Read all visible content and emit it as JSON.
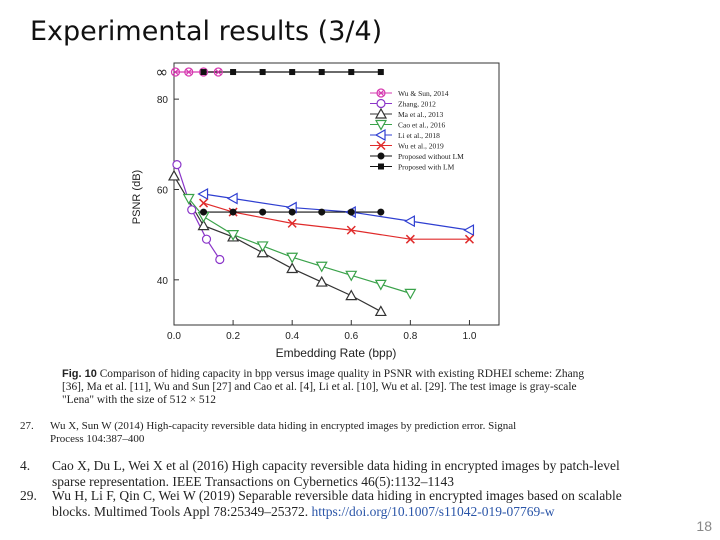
{
  "slide": {
    "title": "Experimental results (3/4)",
    "page_number": "18"
  },
  "chart_data": {
    "type": "line",
    "xlabel": "Embedding Rate (bpp)",
    "ylabel": "PSNR (dB)",
    "xlim": [
      0,
      1.1
    ],
    "ylim": [
      30,
      88
    ],
    "xticks": [
      0.0,
      0.2,
      0.4,
      0.6,
      0.8,
      1.0
    ],
    "xtick_labels": [
      "0.0",
      "0.2",
      "0.4",
      "0.6",
      "0.8",
      "1.0"
    ],
    "yticks": [
      40,
      60,
      80
    ],
    "ytick_labels": [
      "40",
      "60",
      "80"
    ],
    "infinity_label": "∞",
    "infinity_value": 86,
    "legend_position": "top-right",
    "series": [
      {
        "name": "Wu & Sun, 2014",
        "color": "#d63ab0",
        "marker": "circle-x",
        "x": [
          0.005,
          0.05,
          0.1,
          0.15
        ],
        "y": [
          86,
          86,
          86,
          86
        ]
      },
      {
        "name": "Zhang, 2012",
        "color": "#8a35c9",
        "marker": "circle-open",
        "x": [
          0.01,
          0.06,
          0.11,
          0.155
        ],
        "y": [
          65.5,
          55.5,
          49,
          44.5
        ]
      },
      {
        "name": "Ma et al., 2013",
        "color": "#333333",
        "marker": "triangle-open",
        "x": [
          0.0,
          0.1,
          0.2,
          0.3,
          0.4,
          0.5,
          0.6,
          0.7
        ],
        "y": [
          63,
          52,
          49.5,
          46,
          42.5,
          39.5,
          36.5,
          33
        ]
      },
      {
        "name": "Cao et al., 2016",
        "color": "#3aa24a",
        "marker": "triangle-down-open",
        "x": [
          0.05,
          0.1,
          0.2,
          0.3,
          0.4,
          0.5,
          0.6,
          0.7,
          0.8
        ],
        "y": [
          58,
          54,
          50,
          47.5,
          45,
          43,
          41,
          39,
          37
        ]
      },
      {
        "name": "Li et al., 2018",
        "color": "#2f3fd1",
        "marker": "triangle-left-open",
        "x": [
          0.1,
          0.2,
          0.4,
          0.6,
          0.8,
          1.0
        ],
        "y": [
          59,
          58,
          56,
          55,
          53,
          51
        ]
      },
      {
        "name": "Wu et al., 2019",
        "color": "#e02b2b",
        "marker": "x",
        "x": [
          0.1,
          0.2,
          0.4,
          0.6,
          0.8,
          1.0
        ],
        "y": [
          57,
          55,
          52.5,
          51,
          49,
          49
        ]
      },
      {
        "name": "Proposed without LM",
        "color": "#111111",
        "marker": "dot",
        "x": [
          0.1,
          0.2,
          0.3,
          0.4,
          0.5,
          0.6,
          0.7
        ],
        "y": [
          55,
          55,
          55,
          55,
          55,
          55,
          55
        ]
      },
      {
        "name": "Proposed with LM",
        "color": "#111111",
        "marker": "square",
        "x": [
          0.1,
          0.2,
          0.3,
          0.4,
          0.5,
          0.6,
          0.7
        ],
        "y": [
          86,
          86,
          86,
          86,
          86,
          86,
          86
        ]
      }
    ]
  },
  "caption": {
    "label": "Fig. 10",
    "text": "Comparison of hiding capacity in bpp versus image quality in PSNR with existing RDHEI scheme: Zhang [36], Ma et al. [11], Wu and Sun [27] and Cao et al. [4], Li et al. [10], Wu et al. [29]. The test image is gray-scale \"Lena\" with the size of 512 × 512"
  },
  "references": [
    {
      "num": "27.",
      "text_line1": "Wu X, Sun W (2014) High-capacity reversible data hiding in encrypted images by prediction error. Signal",
      "text_line2": "Process 104:387–400"
    },
    {
      "num": "4.",
      "text_line1": "Cao X, Du L, Wei X et al (2016) High capacity reversible data hiding in encrypted images by patch-level",
      "text_line2": "sparse representation. IEEE Transactions on Cybernetics 46(5):1132–1143"
    },
    {
      "num": "29.",
      "text_line1": "Wu H, Li F, Qin C, Wei W (2019) Separable reversible data hiding in encrypted images based on scalable",
      "text_line2": "blocks. Multimed Tools Appl 78:25349–25372.",
      "doi": "https://doi.org/10.1007/s11042-019-07769-w"
    }
  ]
}
